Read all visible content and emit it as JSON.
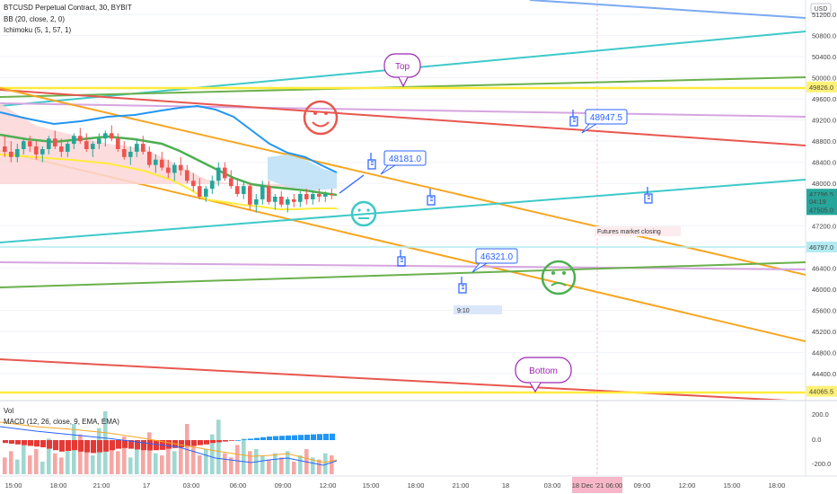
{
  "header": {
    "title": "BTCUSD Perpetual Contract, 30, BYBIT",
    "indicator_bb": "BB (20, close, 2, 0)",
    "indicator_ichimoku": "Ichimoku (5, 1, 57, 1)"
  },
  "currency_badge": "USD",
  "price_axis": {
    "ticks": [
      "51200.0",
      "50800.0",
      "50400.0",
      "50000.0",
      "49600.0",
      "49200.0",
      "48800.0",
      "48400.0",
      "48000.0",
      "47200.0",
      "46400.0",
      "46000.0",
      "45600.0",
      "45200.0",
      "44800.0",
      "44400.0"
    ],
    "tick_values": [
      51200,
      50800,
      50400,
      50000,
      49600,
      49200,
      48800,
      48400,
      48000,
      47200,
      46400,
      46000,
      45600,
      45200,
      44800,
      44400
    ],
    "badges": [
      {
        "text": "49826.0",
        "value": 49826,
        "bg": "#fff176",
        "fg": "#222222"
      },
      {
        "text": "47796.5",
        "value": 47796.5,
        "bg": "#26a69a",
        "fg": "#ffffff"
      },
      {
        "text": "04:19",
        "value": 47660,
        "bg": "#26a69a",
        "fg": "#ffffff"
      },
      {
        "text": "47505.0",
        "value": 47505,
        "bg": "#26a69a",
        "fg": "#ffffff"
      },
      {
        "text": "46797.0",
        "value": 46797,
        "bg": "#b2ebf2",
        "fg": "#222222"
      },
      {
        "text": "44065.5",
        "value": 44065.5,
        "bg": "#fff176",
        "fg": "#222222"
      }
    ]
  },
  "time_axis": {
    "labels": [
      "15:00",
      "18:00",
      "21:00",
      "17",
      "03:00",
      "06:00",
      "09:00",
      "12:00",
      "15:00",
      "18:00",
      "21:00",
      "18",
      "03:00",
      "18 Dec '21 06:00",
      "09:00",
      "12:00",
      "15:00",
      "18:00"
    ],
    "highlight": "18 Dec '21 06:00"
  },
  "annotations": {
    "top": "Top",
    "bottom": "Bottom",
    "price_callout_1": "48181.0",
    "price_callout_2": "48947.5",
    "price_callout_3": "46321.0",
    "futures_note": "Futures market closing",
    "time_box": "9:10"
  },
  "volume_panel": {
    "vol_label": "Vol",
    "macd_label": "MACD (12, 26, close, 9, EMA, EMA)",
    "ticks": [
      "200.0",
      "0.0",
      "-200.0"
    ]
  },
  "colors": {
    "up": "#26a69a",
    "down": "#ef5350",
    "orange_channel": "#f5a623",
    "cyan_line": "#3ec9c9",
    "green_line": "#6ab04c",
    "red_line": "#e8574f",
    "purple_line": "#d6a5e0",
    "yellow_line": "#ffeb3b",
    "blue_callout": "#2962ff",
    "purple_callout": "#9c27b0"
  },
  "chart_data": {
    "type": "candlestick",
    "symbol": "BTCUSD Perpetual Contract",
    "interval": "30",
    "exchange": "BYBIT",
    "ylim": [
      43760,
      51400
    ],
    "last_price": 47796.5,
    "candles": [
      {
        "o": 48700,
        "h": 48900,
        "l": 48500,
        "c": 48600
      },
      {
        "o": 48600,
        "h": 48800,
        "l": 48400,
        "c": 48500
      },
      {
        "o": 48500,
        "h": 48750,
        "l": 48400,
        "c": 48650
      },
      {
        "o": 48650,
        "h": 48850,
        "l": 48550,
        "c": 48800
      },
      {
        "o": 48800,
        "h": 48900,
        "l": 48600,
        "c": 48700
      },
      {
        "o": 48700,
        "h": 48800,
        "l": 48450,
        "c": 48550
      },
      {
        "o": 48550,
        "h": 48700,
        "l": 48400,
        "c": 48650
      },
      {
        "o": 48650,
        "h": 48900,
        "l": 48550,
        "c": 48850
      },
      {
        "o": 48850,
        "h": 49000,
        "l": 48650,
        "c": 48700
      },
      {
        "o": 48700,
        "h": 48850,
        "l": 48500,
        "c": 48600
      },
      {
        "o": 48600,
        "h": 48800,
        "l": 48500,
        "c": 48750
      },
      {
        "o": 48750,
        "h": 48950,
        "l": 48650,
        "c": 48900
      },
      {
        "o": 48900,
        "h": 49050,
        "l": 48750,
        "c": 48800
      },
      {
        "o": 48800,
        "h": 48950,
        "l": 48600,
        "c": 48650
      },
      {
        "o": 48650,
        "h": 48800,
        "l": 48500,
        "c": 48750
      },
      {
        "o": 48750,
        "h": 48950,
        "l": 48650,
        "c": 48850
      },
      {
        "o": 48850,
        "h": 49000,
        "l": 48700,
        "c": 48950
      },
      {
        "o": 48950,
        "h": 49100,
        "l": 48800,
        "c": 48850
      },
      {
        "o": 48850,
        "h": 48950,
        "l": 48600,
        "c": 48650
      },
      {
        "o": 48650,
        "h": 48800,
        "l": 48450,
        "c": 48500
      },
      {
        "o": 48500,
        "h": 48700,
        "l": 48350,
        "c": 48600
      },
      {
        "o": 48600,
        "h": 48850,
        "l": 48500,
        "c": 48750
      },
      {
        "o": 48750,
        "h": 48900,
        "l": 48550,
        "c": 48600
      },
      {
        "o": 48600,
        "h": 48700,
        "l": 48300,
        "c": 48350
      },
      {
        "o": 48350,
        "h": 48550,
        "l": 48200,
        "c": 48450
      },
      {
        "o": 48450,
        "h": 48600,
        "l": 48250,
        "c": 48300
      },
      {
        "o": 48300,
        "h": 48450,
        "l": 48100,
        "c": 48200
      },
      {
        "o": 48200,
        "h": 48400,
        "l": 48050,
        "c": 48350
      },
      {
        "o": 48350,
        "h": 48500,
        "l": 48150,
        "c": 48250
      },
      {
        "o": 48250,
        "h": 48350,
        "l": 48000,
        "c": 48050
      },
      {
        "o": 48050,
        "h": 48200,
        "l": 47850,
        "c": 47950
      },
      {
        "o": 47950,
        "h": 48100,
        "l": 47700,
        "c": 47750
      },
      {
        "o": 47750,
        "h": 47950,
        "l": 47650,
        "c": 47900
      },
      {
        "o": 47900,
        "h": 48150,
        "l": 47800,
        "c": 48050
      },
      {
        "o": 48050,
        "h": 48400,
        "l": 47950,
        "c": 48300
      },
      {
        "o": 48300,
        "h": 48400,
        "l": 48050,
        "c": 48100
      },
      {
        "o": 48100,
        "h": 48250,
        "l": 47900,
        "c": 47950
      },
      {
        "o": 47950,
        "h": 48100,
        "l": 47750,
        "c": 47800
      },
      {
        "o": 47800,
        "h": 48050,
        "l": 47700,
        "c": 47950
      },
      {
        "o": 47950,
        "h": 48000,
        "l": 47500,
        "c": 47600
      },
      {
        "o": 47600,
        "h": 47800,
        "l": 47450,
        "c": 47700
      },
      {
        "o": 47700,
        "h": 48050,
        "l": 47600,
        "c": 47950
      },
      {
        "o": 47950,
        "h": 48050,
        "l": 47600,
        "c": 47650
      },
      {
        "o": 47650,
        "h": 47800,
        "l": 47500,
        "c": 47750
      },
      {
        "o": 47750,
        "h": 47850,
        "l": 47550,
        "c": 47600
      },
      {
        "o": 47600,
        "h": 47750,
        "l": 47450,
        "c": 47700
      },
      {
        "o": 47700,
        "h": 47800,
        "l": 47550,
        "c": 47650
      },
      {
        "o": 47650,
        "h": 47850,
        "l": 47550,
        "c": 47800
      },
      {
        "o": 47800,
        "h": 47900,
        "l": 47600,
        "c": 47700
      },
      {
        "o": 47700,
        "h": 47850,
        "l": 47600,
        "c": 47800
      },
      {
        "o": 47800,
        "h": 47900,
        "l": 47650,
        "c": 47750
      },
      {
        "o": 47750,
        "h": 47850,
        "l": 47650,
        "c": 47800
      },
      {
        "o": 47800,
        "h": 47900,
        "l": 47700,
        "c": 47796.5
      }
    ],
    "volumes": [
      40,
      55,
      35,
      70,
      45,
      60,
      30,
      85,
      50,
      40,
      65,
      120,
      95,
      60,
      45,
      110,
      150,
      70,
      55,
      90,
      40,
      75,
      60,
      100,
      50,
      45,
      80,
      55,
      65,
      120,
      70,
      45,
      60,
      95,
      130,
      50,
      40,
      70,
      85,
      55,
      60,
      45,
      35,
      50,
      40,
      55,
      30,
      45,
      60,
      40,
      35,
      50,
      45
    ],
    "macd_hist": [
      -20,
      -25,
      -30,
      -35,
      -40,
      -45,
      -50,
      -60,
      -70,
      -80,
      -75,
      -70,
      -80,
      -85,
      -90,
      -85,
      -80,
      -70,
      -60,
      -55,
      -60,
      -65,
      -70,
      -72,
      -70,
      -68,
      -60,
      -55,
      -50,
      -45,
      -40,
      -35,
      -30,
      -20,
      -15,
      -10,
      -5,
      0,
      5,
      10,
      15,
      20,
      25,
      28,
      30,
      32,
      34,
      36,
      38,
      40,
      42,
      44,
      45
    ]
  }
}
